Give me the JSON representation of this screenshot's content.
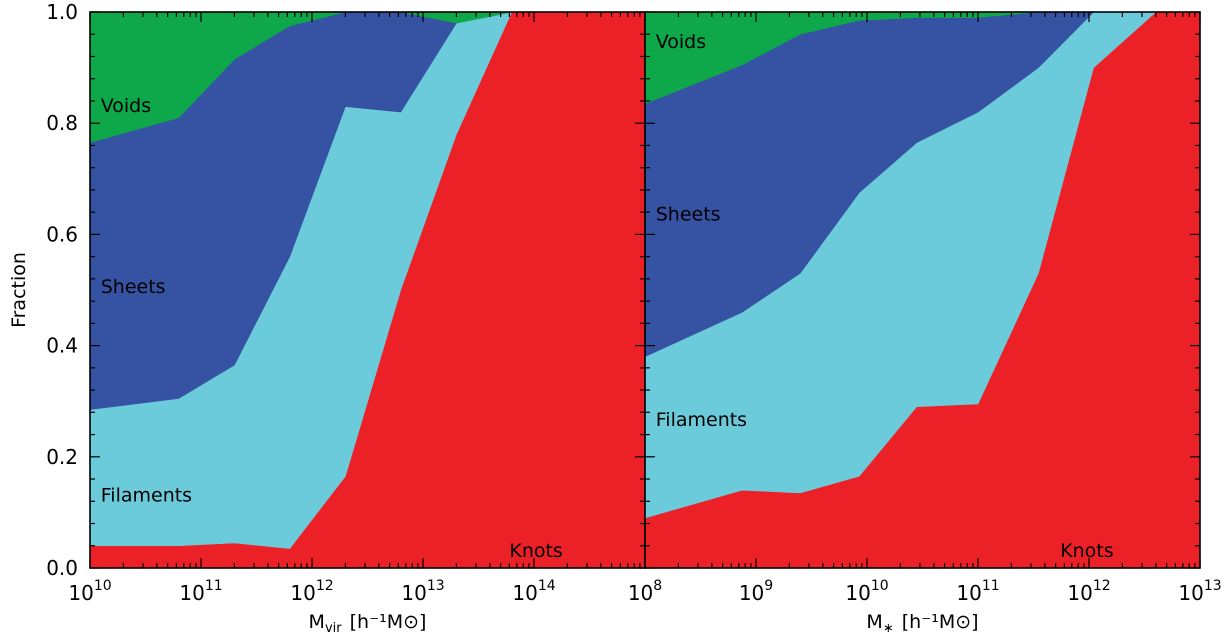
{
  "colors": {
    "Voids": "#0ea84a",
    "Sheets": "#3652a3",
    "Filaments": "#6ccbdb",
    "Knots": "#ec2027"
  },
  "ylabel": "Fraction",
  "chart_data": [
    {
      "type": "area",
      "stacked": true,
      "x_scale": "log10",
      "xlim": [
        10000000000.0,
        1000000000000000.0
      ],
      "ylim": [
        0,
        1
      ],
      "xlabel": {
        "base": "M",
        "sub": "vir",
        "unit": "[h⁻¹M⊙]"
      },
      "x_ticks": [
        {
          "base": "10",
          "exp": "10"
        },
        {
          "base": "10",
          "exp": "11"
        },
        {
          "base": "10",
          "exp": "12"
        },
        {
          "base": "10",
          "exp": "13"
        },
        {
          "base": "10",
          "exp": "14"
        }
      ],
      "y_ticks": [
        "0.0",
        "0.2",
        "0.4",
        "0.6",
        "0.8",
        "1.0"
      ],
      "x": [
        10000000000.0,
        63000000000.0,
        200000000000.0,
        630000000000.0,
        2000000000000.0,
        6300000000000.0,
        20000000000000.0,
        63000000000000.0,
        200000000000000.0,
        1000000000000000.0
      ],
      "series": [
        {
          "name": "Knots",
          "values": [
            0.04,
            0.04,
            0.045,
            0.035,
            0.165,
            0.5,
            0.78,
            1.0,
            1.0,
            1.0
          ]
        },
        {
          "name": "Filaments",
          "values": [
            0.245,
            0.265,
            0.32,
            0.525,
            0.665,
            0.32,
            0.2,
            0.0,
            0.0,
            0.0
          ]
        },
        {
          "name": "Sheets",
          "values": [
            0.48,
            0.505,
            0.55,
            0.415,
            0.17,
            0.18,
            0.0,
            0.0,
            0.0,
            0.0
          ]
        },
        {
          "name": "Voids",
          "values": [
            0.235,
            0.19,
            0.085,
            0.025,
            0.0,
            0.0,
            0.02,
            0.0,
            0.0,
            0.0
          ]
        }
      ],
      "labels": [
        {
          "text": "Voids",
          "x": 12500000000.0,
          "y": 0.82
        },
        {
          "text": "Sheets",
          "x": 12500000000.0,
          "y": 0.495
        },
        {
          "text": "Filaments",
          "x": 12500000000.0,
          "y": 0.12
        },
        {
          "text": "Knots",
          "x": 60000000000000.0,
          "y": 0.02
        }
      ]
    },
    {
      "type": "area",
      "stacked": true,
      "x_scale": "log10",
      "xlim": [
        100000000.0,
        10000000000000.0
      ],
      "ylim": [
        0,
        1
      ],
      "xlabel": {
        "base": "M",
        "sub": "∗",
        "unit": "[h⁻¹M⊙]"
      },
      "x_ticks": [
        {
          "base": "10",
          "exp": "8"
        },
        {
          "base": "10",
          "exp": "9"
        },
        {
          "base": "10",
          "exp": "10"
        },
        {
          "base": "10",
          "exp": "11"
        },
        {
          "base": "10",
          "exp": "12"
        },
        {
          "base": "10",
          "exp": "13"
        }
      ],
      "x": [
        100000000.0,
        750000000.0,
        2500000000.0,
        8500000000.0,
        28000000000.0,
        100000000000.0,
        350000000000.0,
        1100000000000.0,
        4000000000000.0,
        10000000000000.0
      ],
      "series": [
        {
          "name": "Knots",
          "values": [
            0.09,
            0.14,
            0.135,
            0.165,
            0.29,
            0.295,
            0.53,
            0.9,
            1.0,
            1.0
          ]
        },
        {
          "name": "Filaments",
          "values": [
            0.29,
            0.32,
            0.395,
            0.51,
            0.475,
            0.525,
            0.37,
            0.1,
            0.0,
            0.0
          ]
        },
        {
          "name": "Sheets",
          "values": [
            0.455,
            0.445,
            0.43,
            0.31,
            0.225,
            0.17,
            0.1,
            0.0,
            0.0,
            0.0
          ]
        },
        {
          "name": "Voids",
          "values": [
            0.165,
            0.095,
            0.04,
            0.015,
            0.01,
            0.01,
            0.0,
            0.0,
            0.0,
            0.0
          ]
        }
      ],
      "labels": [
        {
          "text": "Voids",
          "x": 125000000.0,
          "y": 0.935
        },
        {
          "text": "Sheets",
          "x": 125000000.0,
          "y": 0.625
        },
        {
          "text": "Filaments",
          "x": 125000000.0,
          "y": 0.255
        },
        {
          "text": "Knots",
          "x": 550000000000.0,
          "y": 0.02
        }
      ]
    }
  ]
}
